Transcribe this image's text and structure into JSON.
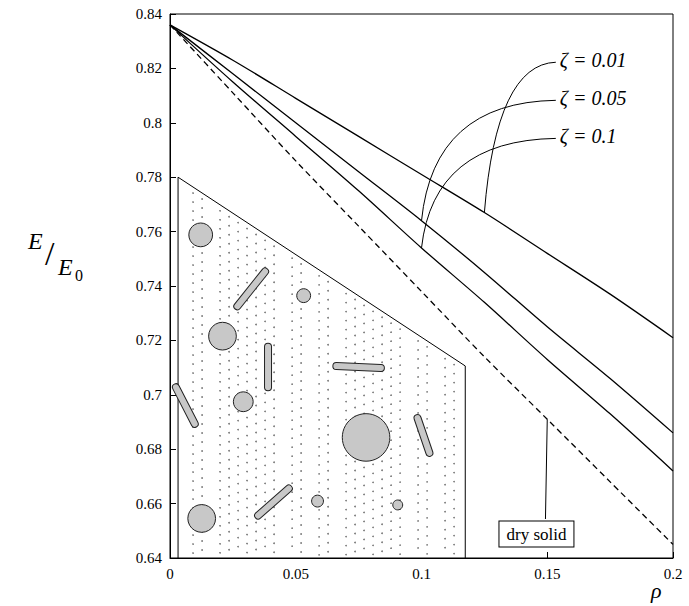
{
  "chart_data": {
    "type": "line",
    "x_label": "ρ",
    "y_label": "E/E0",
    "x": [
      0,
      0.025,
      0.05,
      0.075,
      0.1,
      0.125,
      0.15,
      0.175,
      0.2
    ],
    "series": [
      {
        "name": "ζ = 0.01",
        "color": "#000000",
        "line_style": "solid",
        "values": [
          0.836,
          0.823,
          0.809,
          0.795,
          0.781,
          0.767,
          0.752,
          0.737,
          0.721
        ]
      },
      {
        "name": "ζ = 0.05",
        "color": "#000000",
        "line_style": "solid",
        "values": [
          0.836,
          0.818,
          0.8,
          0.782,
          0.764,
          0.745,
          0.725,
          0.706,
          0.686
        ]
      },
      {
        "name": "ζ = 0.1",
        "color": "#000000",
        "line_style": "solid",
        "values": [
          0.836,
          0.815,
          0.795,
          0.775,
          0.754,
          0.734,
          0.713,
          0.693,
          0.672
        ]
      },
      {
        "name": "dry solid",
        "color": "#000000",
        "line_style": "dashed",
        "values": [
          0.836,
          0.811,
          0.786,
          0.762,
          0.738,
          0.714,
          0.691,
          0.668,
          0.645
        ]
      }
    ],
    "xlim": [
      0,
      0.2
    ],
    "ylim": [
      0.64,
      0.84
    ],
    "xticks": [
      0,
      0.05,
      0.1,
      0.15,
      0.2
    ],
    "yticks": [
      0.64,
      0.66,
      0.68,
      0.7,
      0.72,
      0.74,
      0.76,
      0.78,
      0.8,
      0.82,
      0.84
    ],
    "grid": false
  }
}
